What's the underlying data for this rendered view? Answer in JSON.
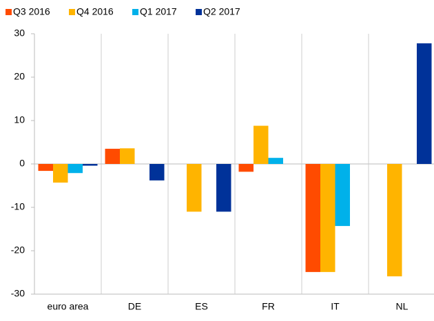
{
  "chart_data": {
    "type": "bar",
    "categories": [
      "euro area",
      "DE",
      "ES",
      "FR",
      "IT",
      "NL"
    ],
    "series": [
      {
        "name": "Q3 2016",
        "color": "#ff4b00",
        "values": [
          -1.6,
          3.5,
          0,
          -1.8,
          -24.9,
          0
        ]
      },
      {
        "name": "Q4 2016",
        "color": "#ffb400",
        "values": [
          -4.3,
          3.6,
          -11,
          8.8,
          -24.9,
          -25.9
        ]
      },
      {
        "name": "Q1 2017",
        "color": "#00b1ea",
        "values": [
          -2.1,
          0,
          0,
          1.4,
          -14.3,
          0
        ]
      },
      {
        "name": "Q2 2017",
        "color": "#003299",
        "values": [
          -0.4,
          -3.8,
          -11,
          0,
          0,
          27.8
        ]
      }
    ],
    "ylim": [
      -30,
      30
    ],
    "yticks": [
      -30,
      -20,
      -10,
      0,
      10,
      20,
      30
    ],
    "legend": "top-left"
  }
}
